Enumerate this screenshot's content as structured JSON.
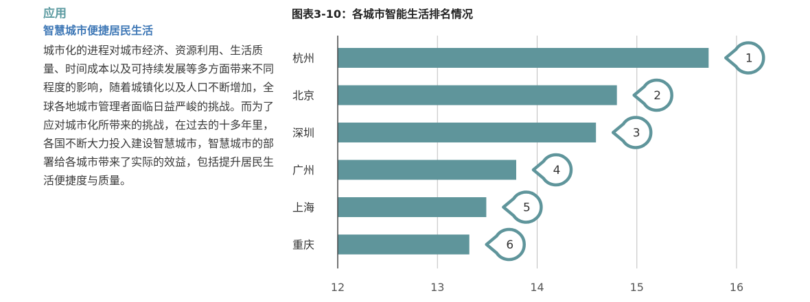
{
  "text": {
    "section": "应用",
    "subtitle": "智慧城市便捷居民生活",
    "paragraph": "城市化的进程对城市经济、资源利用、生活质量、时间成本以及可持续发展等多方面带来不同程度的影响，随着城镇化以及人口不断增加，全球各地城市管理者面临日益严峻的挑战。而为了应对城市化所带来的挑战，在过去的十多年里，各国不断大力投入建设智慧城市，智慧城市的部署给各城市带来了实际的效益，包括提升居民生活便捷度与质量。"
  },
  "chart_data": {
    "type": "bar",
    "orientation": "horizontal",
    "title": "图表3-10：各城市智能生活排名情况",
    "categories": [
      "杭州",
      "北京",
      "深圳",
      "广州",
      "上海",
      "重庆"
    ],
    "values": [
      15.72,
      14.8,
      14.59,
      13.79,
      13.49,
      13.32
    ],
    "rank_labels": [
      "1",
      "2",
      "3",
      "4",
      "5",
      "6"
    ],
    "xlim": [
      12,
      16
    ],
    "xticks": [
      "12",
      "13",
      "14",
      "15",
      "16"
    ],
    "grid": true,
    "colors": {
      "bar": "#5f959b",
      "badge": "#5f959b",
      "grid": "#bdbdbd"
    }
  }
}
